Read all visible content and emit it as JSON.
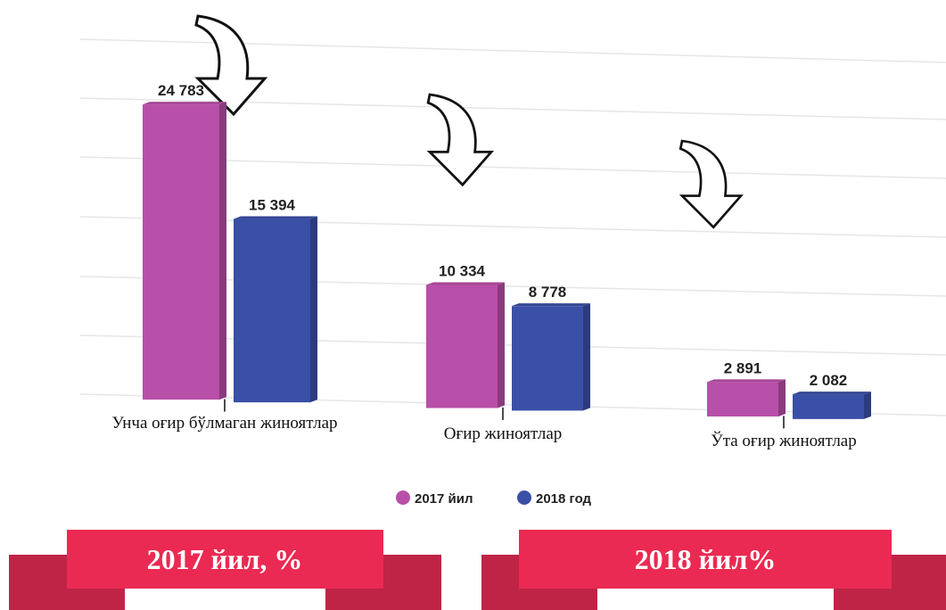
{
  "chart_data": {
    "type": "bar",
    "categories": [
      "Унча оғир бўлмаган жиноятлар",
      "Оғир жиноятлар",
      "Ўта оғир жиноятлар"
    ],
    "series": [
      {
        "name": "2017 йил",
        "color": "#b84fa8",
        "values": [
          24783,
          10334,
          2891
        ],
        "value_labels": [
          "24 783",
          "10 334",
          "2 891"
        ]
      },
      {
        "name": "2018 год",
        "color": "#3a4fa6",
        "values": [
          15394,
          8778,
          2082
        ],
        "value_labels": [
          "15 394",
          "8 778",
          "2 082"
        ]
      }
    ],
    "legend": "bottom"
  },
  "banners": [
    "2017 йил, %",
    "2018 йил%"
  ]
}
